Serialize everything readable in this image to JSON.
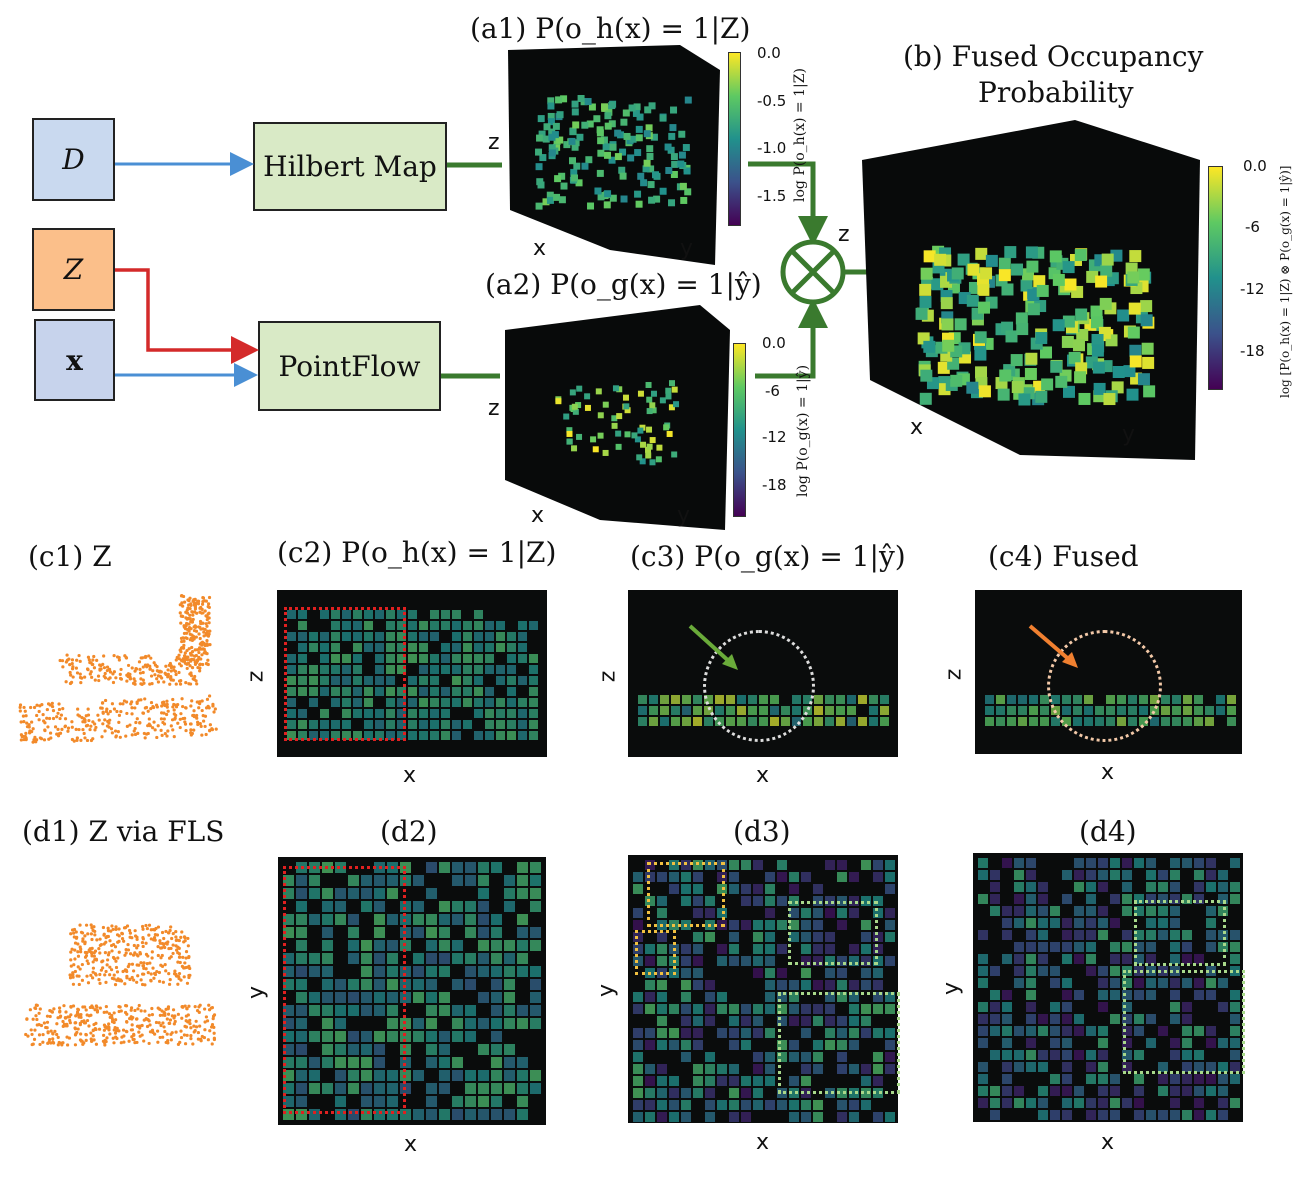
{
  "inputs": {
    "d": "D",
    "z": "Z",
    "x": "x"
  },
  "modules": {
    "hilbert": "Hilbert Map",
    "pointflow": "PointFlow"
  },
  "a1": {
    "title": "(a1) P(o_h(x) = 1|Z)",
    "axes": {
      "x": "x",
      "y": "y",
      "z": "z"
    },
    "colorbar": {
      "ticks": [
        "0.0",
        "-0.5",
        "-1.0",
        "-1.5"
      ],
      "label": "log P(o_h(x) = 1|Z)"
    }
  },
  "a2": {
    "title": "(a2) P(o_g(x) = 1|ŷ)",
    "axes": {
      "x": "x",
      "y": "y",
      "z": "z"
    },
    "colorbar": {
      "ticks": [
        "0.0",
        "-6",
        "-12",
        "-18"
      ],
      "label": "log P(o_g(x) = 1|ŷ)"
    }
  },
  "b": {
    "title_line1": "(b) Fused Occupancy",
    "title_line2": "Probability",
    "axes": {
      "x": "x",
      "y": "y",
      "z": "z"
    },
    "colorbar": {
      "ticks": [
        "0.0",
        "-6",
        "-12",
        "-18"
      ],
      "label": "log [P(o_h(x) = 1|Z) ⊗ P(o_g(x) = 1|ŷ)]"
    }
  },
  "fusion_operator": "⊗",
  "row_c": {
    "c1": "(c1)  Z",
    "c2": "(c2) P(o_h(x) = 1|Z)",
    "c3": "(c3) P(o_g(x) = 1|ŷ)",
    "c4": "(c4)  Fused",
    "xlabel": "x",
    "ylabel": "z"
  },
  "row_d": {
    "d1": "(d1) Z via FLS",
    "d2": "(d2)",
    "d3": "(d3)",
    "d4": "(d4)",
    "xlabel": "x",
    "ylabel": "y"
  },
  "colors": {
    "green_line": "#3a7a2e",
    "blue_arrow": "#4a8fd4",
    "red_arrow": "#d42a2a",
    "orange_points": "#f28a2a",
    "module_fill": "#d9eac6",
    "d_fill": "#c9d9ef",
    "z_fill": "#fbbf8a",
    "x_fill": "#c7d3ec"
  }
}
